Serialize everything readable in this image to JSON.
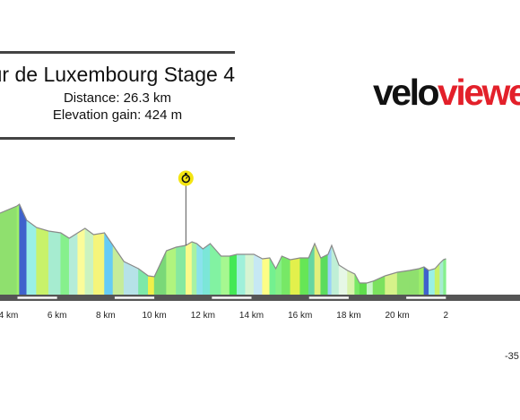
{
  "title": "ur de Luxembourg Stage 4",
  "distance": "Distance: 26.3 km",
  "elevation_gain": "Elevation gain: 424 m",
  "logo": {
    "part1": "velo",
    "part2": "viewe"
  },
  "edge_value": "-35",
  "marker": {
    "name": "stopwatch-icon",
    "km": 11.3
  },
  "chart_data": {
    "type": "area",
    "title": "ur de Luxembourg Stage 4",
    "xlabel": "",
    "ylabel": "",
    "x_unit": "km",
    "xlim": [
      3.65,
      25.05
    ],
    "ylim": [
      0,
      140
    ],
    "tick_labels": [
      "4 km",
      "6 km",
      "8 km",
      "10 km",
      "12 km",
      "14 km",
      "16 km",
      "18 km",
      "20 km",
      "2"
    ],
    "tick_values": [
      4,
      6,
      8,
      10,
      12,
      14,
      16,
      18,
      20,
      22
    ],
    "profile": [
      [
        3.65,
        92
      ],
      [
        4.35,
        100
      ],
      [
        4.45,
        102
      ],
      [
        4.75,
        84
      ],
      [
        5.15,
        76
      ],
      [
        5.65,
        72
      ],
      [
        6.15,
        70
      ],
      [
        6.5,
        64
      ],
      [
        6.85,
        70
      ],
      [
        7.15,
        75
      ],
      [
        7.5,
        68
      ],
      [
        7.95,
        70
      ],
      [
        8.3,
        56
      ],
      [
        8.75,
        38
      ],
      [
        9.35,
        30
      ],
      [
        9.75,
        22
      ],
      [
        10.0,
        21
      ],
      [
        10.5,
        50
      ],
      [
        10.9,
        54
      ],
      [
        11.3,
        56
      ],
      [
        11.55,
        60
      ],
      [
        11.75,
        58
      ],
      [
        12.0,
        52
      ],
      [
        12.3,
        58
      ],
      [
        12.75,
        44
      ],
      [
        13.1,
        44
      ],
      [
        13.4,
        46
      ],
      [
        13.75,
        46
      ],
      [
        14.1,
        46
      ],
      [
        14.45,
        41
      ],
      [
        14.75,
        42
      ],
      [
        15.0,
        30
      ],
      [
        15.25,
        44
      ],
      [
        15.6,
        40
      ],
      [
        16.0,
        42
      ],
      [
        16.35,
        42
      ],
      [
        16.6,
        58
      ],
      [
        16.85,
        42
      ],
      [
        17.15,
        46
      ],
      [
        17.3,
        56
      ],
      [
        17.6,
        34
      ],
      [
        17.95,
        28
      ],
      [
        18.25,
        24
      ],
      [
        18.45,
        14
      ],
      [
        18.75,
        14
      ],
      [
        19.0,
        16
      ],
      [
        19.5,
        22
      ],
      [
        20.0,
        26
      ],
      [
        20.5,
        28
      ],
      [
        20.9,
        30
      ],
      [
        21.1,
        32
      ],
      [
        21.3,
        28
      ],
      [
        21.55,
        30
      ],
      [
        21.75,
        36
      ],
      [
        21.9,
        40
      ],
      [
        22.0,
        41
      ]
    ],
    "gradient_colors": [
      "#8fe06e",
      "#9ff06a",
      "#3f62cc",
      "#99f0e6",
      "#c8f26a",
      "#a6ecd0",
      "#86f08c",
      "#b4ecd8",
      "#fbfc9a",
      "#cbf3c0",
      "#f5f57a",
      "#66ccf5",
      "#c6ec9a",
      "#b6e2e8",
      "#7de8a8",
      "#f0f04a",
      "#7ad878",
      "#b0f47e",
      "#86e8a0",
      "#fafa8a",
      "#a8f2a2",
      "#8ae2ec",
      "#7be6d8",
      "#82f2a2",
      "#a6f890",
      "#44e854",
      "#9ff0da",
      "#d6f4d2",
      "#c6e8f4",
      "#fdfd86",
      "#74f090",
      "#86f086",
      "#77e866",
      "#e2f04c",
      "#66e656",
      "#66d6a2",
      "#e2f07c",
      "#5cdc5e",
      "#9ad0f8",
      "#bfefd6",
      "#e6f7e6",
      "#d9f3ad",
      "#78e866",
      "#5fdc4c",
      "#caf5ca",
      "#7be15e",
      "#d6f28a",
      "#8fe06e"
    ]
  }
}
